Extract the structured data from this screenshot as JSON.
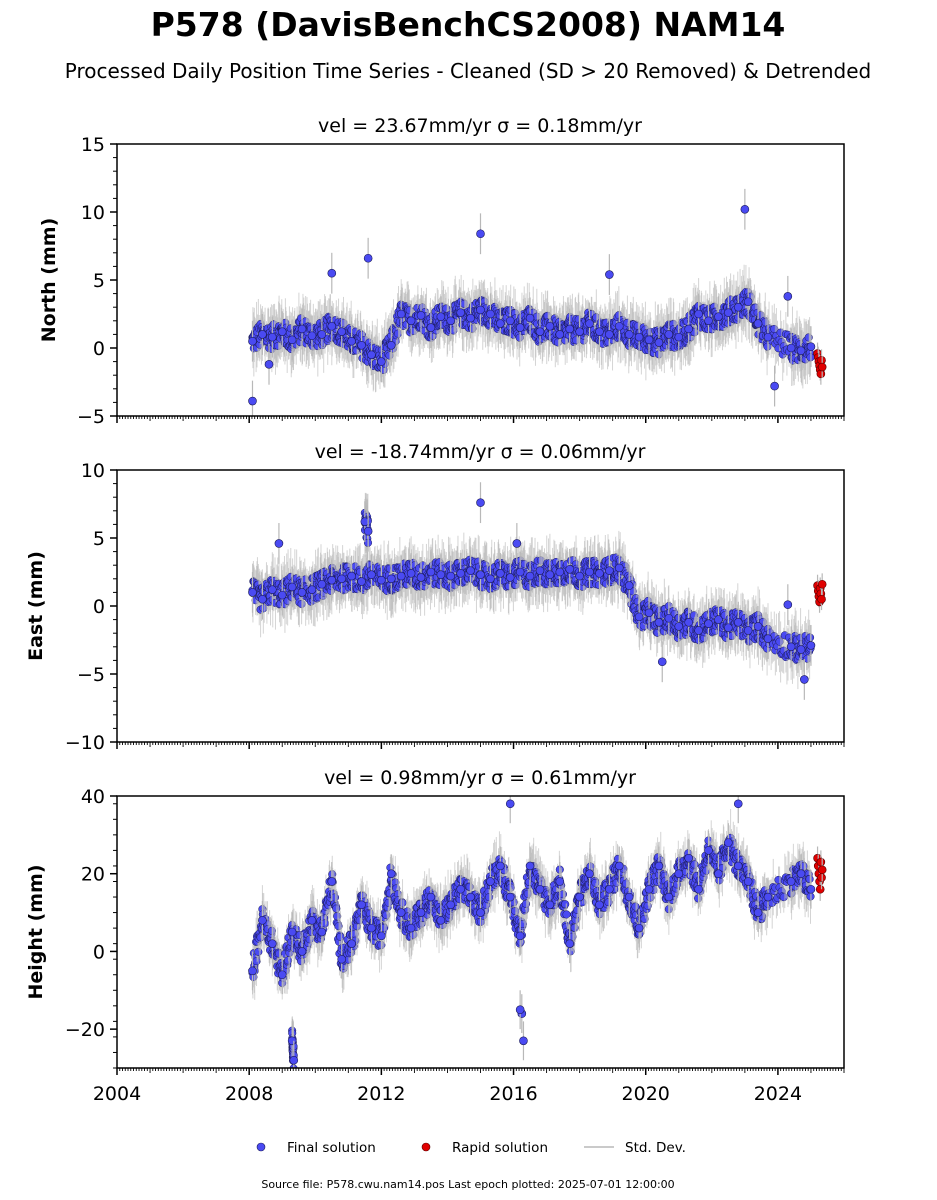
{
  "figure": {
    "title": "P578 (DavisBenchCS2008) NAM14",
    "subtitle": "Processed Daily Position Time Series - Cleaned (SD > 20 Removed) & Detrended",
    "source_note": "Source file: P578.cwu.nam14.pos  Last epoch plotted: 2025-07-01 12:00:00"
  },
  "legend": {
    "final": "Final solution",
    "rapid": "Rapid solution",
    "std": "Std. Dev."
  },
  "colors": {
    "final_fill": "#4a4af2",
    "final_edge": "#1a1a55",
    "rapid_fill": "#e00000",
    "rapid_edge": "#550000",
    "stddev": "#b8b8b8",
    "axis": "#000000"
  },
  "chart_data": [
    {
      "type": "scatter",
      "panel": "north",
      "title": "vel = 23.67mm/yr   σ = 0.18mm/yr",
      "ylabel": "North (mm)",
      "xlim": [
        2004,
        2026
      ],
      "ylim": [
        -5,
        15
      ],
      "xticks": [
        2004,
        2008,
        2012,
        2016,
        2020,
        2024
      ],
      "yticks": [
        -5,
        0,
        5,
        10,
        15
      ],
      "ytick_labels": [
        "−5",
        "0",
        "5",
        "10",
        "15"
      ],
      "series": [
        {
          "name": "Final solution",
          "x": [
            2008.1,
            2008.4,
            2008.7,
            2009.0,
            2009.3,
            2009.6,
            2009.9,
            2010.2,
            2010.5,
            2010.8,
            2011.1,
            2011.4,
            2011.7,
            2012.0,
            2012.3,
            2012.6,
            2012.9,
            2013.2,
            2013.5,
            2013.8,
            2014.1,
            2014.4,
            2014.7,
            2015.0,
            2015.3,
            2015.6,
            2015.9,
            2016.2,
            2016.5,
            2016.8,
            2017.1,
            2017.4,
            2017.7,
            2018.0,
            2018.3,
            2018.6,
            2018.9,
            2019.2,
            2019.5,
            2019.8,
            2020.1,
            2020.4,
            2020.7,
            2021.0,
            2021.3,
            2021.6,
            2021.9,
            2022.2,
            2022.5,
            2022.8,
            2023.1,
            2023.4,
            2023.7,
            2024.4,
            2024.7,
            2025.0,
            2008.1,
            2010.5,
            2011.6,
            2015.0,
            2018.9,
            2023.0,
            2024.3,
            2023.9,
            2008.6
          ],
          "y": [
            0.5,
            1.0,
            0.8,
            1.2,
            0.6,
            1.4,
            0.9,
            1.0,
            1.6,
            1.2,
            0.5,
            0.2,
            -0.5,
            -1.0,
            0.2,
            2.5,
            2.0,
            2.4,
            1.5,
            2.3,
            2.0,
            2.6,
            2.2,
            2.8,
            2.5,
            1.8,
            2.0,
            1.5,
            2.2,
            1.2,
            1.6,
            1.0,
            1.4,
            1.2,
            1.8,
            1.2,
            1.0,
            1.6,
            1.0,
            0.8,
            0.6,
            0.4,
            1.0,
            0.8,
            1.4,
            2.5,
            2.0,
            2.3,
            2.6,
            3.0,
            3.4,
            1.8,
            0.8,
            0.0,
            -0.2,
            0.1,
            -3.9,
            5.5,
            6.6,
            8.4,
            5.4,
            10.2,
            3.8,
            -2.8,
            -1.2
          ],
          "err": 1.5
        },
        {
          "name": "Rapid solution",
          "x": [
            2025.2,
            2025.22,
            2025.24,
            2025.26,
            2025.28,
            2025.3,
            2025.32,
            2025.34
          ],
          "y": [
            -0.4,
            -0.7,
            -1.0,
            -1.3,
            -1.6,
            -1.9,
            -0.9,
            -1.4
          ],
          "err": 0.8
        }
      ]
    },
    {
      "type": "scatter",
      "panel": "east",
      "title": "vel = -18.74mm/yr   σ = 0.06mm/yr",
      "ylabel": "East (mm)",
      "xlim": [
        2004,
        2026
      ],
      "ylim": [
        -10,
        10
      ],
      "xticks": [
        2004,
        2008,
        2012,
        2016,
        2020,
        2024
      ],
      "yticks": [
        -10,
        -5,
        0,
        5,
        10
      ],
      "ytick_labels": [
        "−10",
        "−5",
        "0",
        "5",
        "10"
      ],
      "series": [
        {
          "name": "Final solution",
          "x": [
            2008.1,
            2008.4,
            2008.7,
            2009.0,
            2009.3,
            2009.6,
            2009.9,
            2010.2,
            2010.5,
            2010.8,
            2011.1,
            2011.4,
            2011.7,
            2012.0,
            2012.3,
            2012.6,
            2012.9,
            2013.2,
            2013.5,
            2013.8,
            2014.1,
            2014.4,
            2014.7,
            2015.0,
            2015.3,
            2015.6,
            2015.9,
            2016.2,
            2016.5,
            2016.8,
            2017.1,
            2017.4,
            2017.7,
            2018.0,
            2018.3,
            2018.6,
            2018.9,
            2019.2,
            2019.5,
            2019.8,
            2020.1,
            2020.4,
            2020.7,
            2021.0,
            2021.3,
            2021.6,
            2021.9,
            2022.2,
            2022.5,
            2022.8,
            2023.1,
            2023.4,
            2023.7,
            2024.4,
            2024.7,
            2025.0,
            2008.9,
            2011.5,
            2011.6,
            2015.0,
            2016.1,
            2020.5,
            2024.8,
            2024.3
          ],
          "y": [
            1.0,
            0.5,
            1.2,
            0.8,
            1.4,
            1.0,
            1.2,
            1.6,
            1.9,
            2.0,
            2.2,
            1.8,
            2.3,
            1.9,
            2.0,
            2.2,
            2.4,
            2.1,
            2.5,
            2.3,
            2.2,
            2.4,
            2.6,
            2.3,
            2.0,
            2.4,
            2.1,
            2.5,
            2.2,
            2.6,
            2.3,
            2.5,
            2.7,
            2.2,
            2.5,
            2.4,
            2.6,
            2.8,
            1.5,
            -0.8,
            -0.5,
            -1.2,
            -0.9,
            -1.5,
            -1.2,
            -1.8,
            -1.3,
            -1.0,
            -1.6,
            -1.2,
            -1.8,
            -1.5,
            -2.4,
            -3.0,
            -3.2,
            -2.9,
            4.6,
            6.2,
            5.5,
            7.6,
            4.6,
            -4.1,
            -5.4,
            0.1
          ],
          "err": 1.5
        },
        {
          "name": "Rapid solution",
          "x": [
            2025.2,
            2025.22,
            2025.24,
            2025.26,
            2025.28,
            2025.3,
            2025.32,
            2025.34
          ],
          "y": [
            1.5,
            1.1,
            0.7,
            0.3,
            1.3,
            0.9,
            0.5,
            1.6
          ],
          "err": 0.8
        }
      ]
    },
    {
      "type": "scatter",
      "panel": "height",
      "title": "vel = 0.98mm/yr   σ = 0.61mm/yr",
      "ylabel": "Height (mm)",
      "xlim": [
        2004,
        2026
      ],
      "ylim": [
        -30,
        40
      ],
      "xticks": [
        2004,
        2008,
        2012,
        2016,
        2020,
        2024
      ],
      "xtick_labels": [
        "2004",
        "2008",
        "2012",
        "2016",
        "2020",
        "2024"
      ],
      "yticks": [
        -20,
        0,
        20,
        40
      ],
      "ytick_labels": [
        "−20",
        "0",
        "20",
        "40"
      ],
      "series": [
        {
          "name": "Final solution",
          "x": [
            2008.1,
            2008.4,
            2008.7,
            2009.0,
            2009.3,
            2009.6,
            2009.9,
            2010.2,
            2010.5,
            2010.8,
            2011.1,
            2011.4,
            2011.7,
            2012.0,
            2012.3,
            2012.6,
            2012.9,
            2013.2,
            2013.5,
            2013.8,
            2014.1,
            2014.4,
            2014.7,
            2015.0,
            2015.3,
            2015.6,
            2015.9,
            2016.2,
            2016.5,
            2016.8,
            2017.1,
            2017.4,
            2017.7,
            2018.0,
            2018.3,
            2018.6,
            2018.9,
            2019.2,
            2019.5,
            2019.8,
            2020.1,
            2020.4,
            2020.7,
            2021.0,
            2021.3,
            2021.6,
            2021.9,
            2022.2,
            2022.5,
            2022.8,
            2023.1,
            2023.4,
            2023.7,
            2024.4,
            2024.7,
            2025.0,
            2009.3,
            2009.35,
            2016.3,
            2016.25,
            2016.2,
            2015.9,
            2022.8
          ],
          "y": [
            -5.0,
            8.0,
            2.0,
            -6.0,
            5.0,
            0.0,
            8.0,
            5.0,
            18.0,
            -2.0,
            2.0,
            12.0,
            6.0,
            4.0,
            20.0,
            10.0,
            6.0,
            10.0,
            14.0,
            8.0,
            12.0,
            16.0,
            14.0,
            10.0,
            18.0,
            22.0,
            14.0,
            4.0,
            22.0,
            16.0,
            12.0,
            18.0,
            2.0,
            14.0,
            20.0,
            12.0,
            16.0,
            22.0,
            14.0,
            6.0,
            16.0,
            22.0,
            14.0,
            20.0,
            24.0,
            16.0,
            26.0,
            20.0,
            28.0,
            22.0,
            18.0,
            10.0,
            14.0,
            18.0,
            20.0,
            16.0,
            -23.0,
            -28.0,
            -23.0,
            -16.0,
            -15.0,
            38.0,
            38.0
          ],
          "err": 5
        },
        {
          "name": "Rapid solution",
          "x": [
            2025.2,
            2025.22,
            2025.24,
            2025.26,
            2025.28,
            2025.3,
            2025.32,
            2025.34
          ],
          "y": [
            24.0,
            22.0,
            20.0,
            18.0,
            16.0,
            23.0,
            19.0,
            21.0
          ],
          "err": 3
        }
      ]
    }
  ]
}
